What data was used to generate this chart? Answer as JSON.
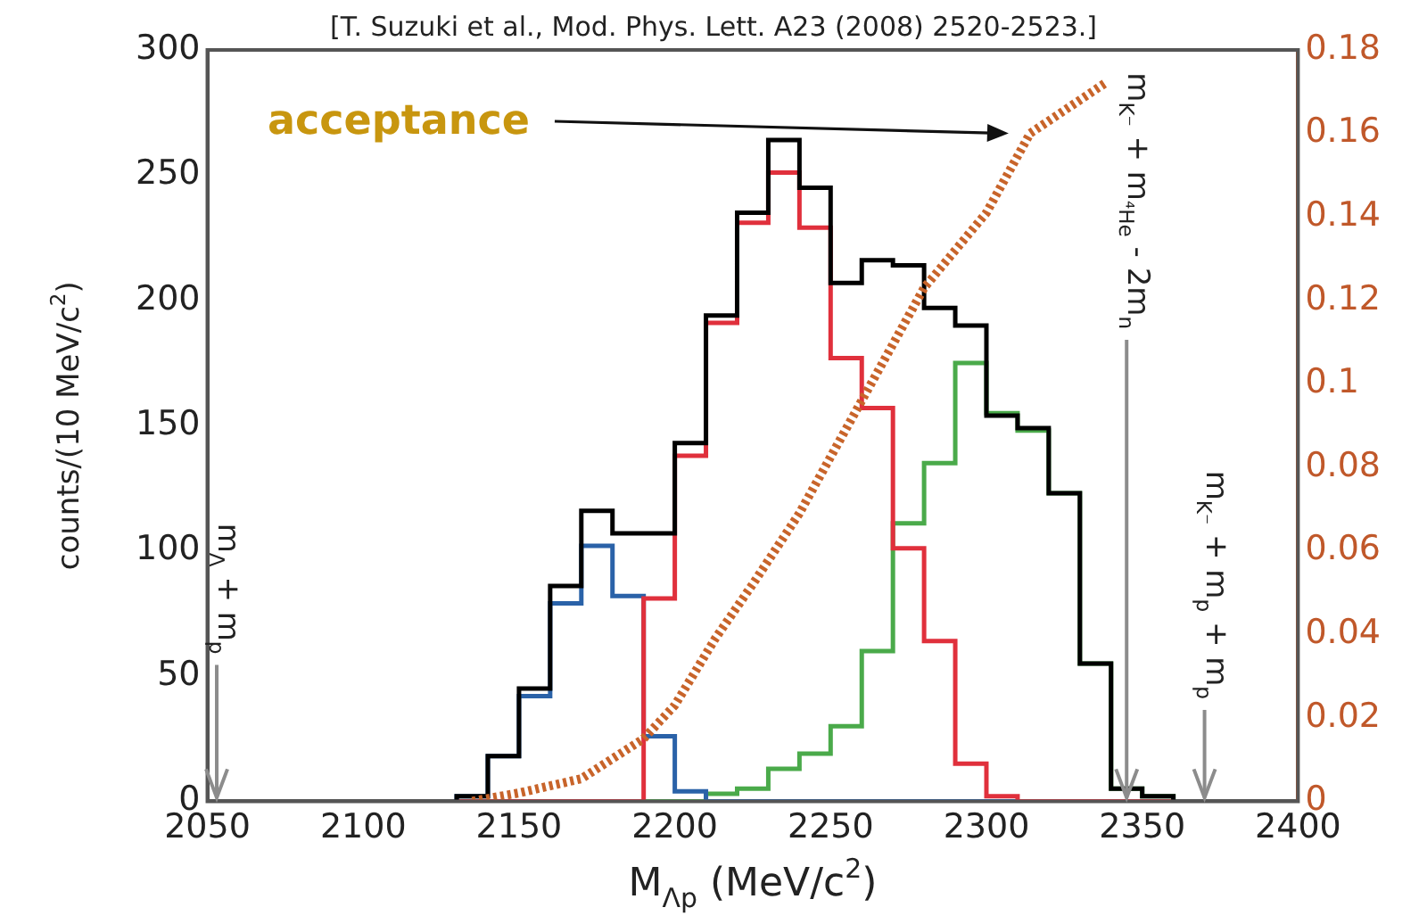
{
  "chart_data": {
    "type": "histogram",
    "xlabel": "M$_{Λp}$ (MeV/c$^{2}$)",
    "ylabel": "counts/(10 MeV/c$^{2}$)",
    "annotations": [
      "[T. Suzuki et al., Mod. Phys. Lett. A23 (2008) 2520-2523.]",
      "acceptance"
    ],
    "bins": [
      2130,
      2140,
      2150,
      2160,
      2170,
      2180,
      2190,
      2200,
      2210,
      2220,
      2230,
      2240,
      2250,
      2260,
      2270,
      2280,
      2290,
      2300,
      2310,
      2320,
      2330,
      2340,
      2350,
      2360
    ],
    "series": [
      {
        "color": "#000000",
        "values": [
          2,
          18,
          45,
          86,
          116,
          107,
          107,
          143,
          194,
          235,
          264,
          245,
          207,
          216,
          214,
          197,
          190,
          154,
          149,
          123,
          55,
          5,
          2
        ]
      },
      {
        "color": "#e0303c",
        "values": [
          0,
          0,
          0,
          0,
          0,
          0,
          81,
          138,
          191,
          231,
          251,
          229,
          177,
          157,
          101,
          64,
          15,
          2,
          0,
          0,
          0,
          0,
          0
        ]
      },
      {
        "color": "#2a62a8",
        "values": [
          2,
          18,
          42,
          79,
          102,
          82,
          26,
          4,
          0,
          0,
          0,
          0,
          0,
          0,
          0,
          0,
          0,
          0,
          0,
          0,
          0,
          0,
          0
        ]
      },
      {
        "color": "#4aaa4a",
        "values": [
          0,
          0,
          0,
          0,
          0,
          0,
          0,
          0,
          3,
          5,
          13,
          19,
          30,
          60,
          111,
          135,
          175,
          155,
          148,
          123,
          55,
          5,
          2
        ]
      },
      {
        "type": "line",
        "axis": "y2",
        "color": "#c8642a",
        "line_style": "dotted",
        "x": [
          2135,
          2150,
          2170,
          2190,
          2200,
          2213,
          2225,
          2240,
          2260,
          2280,
          2300,
          2314,
          2338
        ],
        "values": [
          0,
          0.002,
          0.0054,
          0.015,
          0.023,
          0.039,
          0.052,
          0.069,
          0.096,
          0.123,
          0.141,
          0.16,
          0.172
        ]
      }
    ],
    "xlim": [
      2050,
      2400
    ],
    "xticks": [
      2050,
      2100,
      2150,
      2200,
      2250,
      2300,
      2350,
      2400
    ],
    "ylim": [
      0,
      300
    ],
    "yticks": [
      0,
      50,
      100,
      150,
      200,
      250,
      300
    ],
    "y2lim": [
      0,
      0.18
    ],
    "y2ticks": [
      0,
      0.02,
      0.04,
      0.06,
      0.08,
      0.1,
      0.12,
      0.14,
      0.16,
      0.18
    ],
    "ref_lines": [
      {
        "axis": "x",
        "value": 2053,
        "label": "m$_{Λ}$ + m$_{p}$",
        "color": "#8c8c8c"
      },
      {
        "axis": "x",
        "value": 2345,
        "label": "m$_{K⁻}$ + m$_{⁴He}$ - 2m$_{n}$",
        "color": "#8c8c8c"
      },
      {
        "axis": "x",
        "value": 2370,
        "label": "m$_{K⁻}$ + m$_{p}$ + m$_{p}$",
        "color": "#8c8c8c"
      }
    ],
    "grid": false,
    "legend": false
  }
}
